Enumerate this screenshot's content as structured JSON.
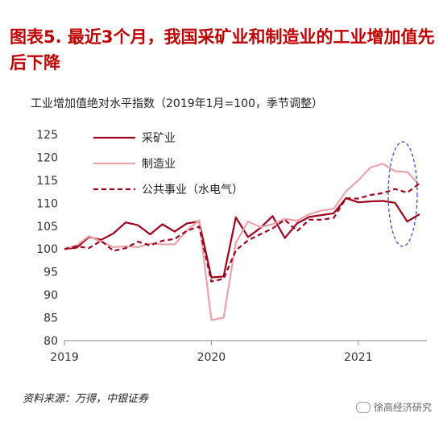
{
  "figure": {
    "title": "图表5.  最近3个月，我国采矿业和制造业的工业增加值先后下降",
    "source": "资料来源：万得，中银证券",
    "watermark": "徐高经济研究"
  },
  "chart_data": {
    "type": "line",
    "ylabel": "工业增加值绝对水平指数（2019年1月=100，季节调整）",
    "ylim": [
      80,
      125
    ],
    "yticks": [
      80,
      85,
      90,
      95,
      100,
      105,
      110,
      115,
      120,
      125
    ],
    "x_ticks": [
      "2019",
      "2020",
      "2021"
    ],
    "x_months": [
      "2019-01",
      "2019-02",
      "2019-03",
      "2019-04",
      "2019-05",
      "2019-06",
      "2019-07",
      "2019-08",
      "2019-09",
      "2019-10",
      "2019-11",
      "2019-12",
      "2020-01",
      "2020-02",
      "2020-03",
      "2020-04",
      "2020-05",
      "2020-06",
      "2020-07",
      "2020-08",
      "2020-09",
      "2020-10",
      "2020-11",
      "2020-12",
      "2021-01",
      "2021-02",
      "2021-03",
      "2021-04",
      "2021-05",
      "2021-06"
    ],
    "grid": false,
    "legend_position": "top-left",
    "highlight": "blue dashed ellipse around the last three months",
    "series": [
      {
        "name": "采矿业",
        "color": "#a0001e",
        "style": "solid",
        "values": [
          100.0,
          100.3,
          102.6,
          102.0,
          103.4,
          105.8,
          105.2,
          103.2,
          105.4,
          103.8,
          105.6,
          106.0,
          93.8,
          94.0,
          106.9,
          102.6,
          104.6,
          107.2,
          102.4,
          105.6,
          107.0,
          107.4,
          107.8,
          111.1,
          110.2,
          110.4,
          110.5,
          110.1,
          106.0,
          107.6
        ]
      },
      {
        "name": "制造业",
        "color": "#eba3aa",
        "style": "solid",
        "values": [
          100.0,
          100.8,
          102.8,
          101.6,
          100.4,
          100.6,
          100.4,
          101.2,
          101.0,
          101.0,
          104.0,
          106.3,
          84.5,
          85.0,
          101.4,
          106.0,
          104.8,
          105.4,
          106.6,
          106.2,
          107.6,
          108.4,
          108.8,
          112.6,
          115.0,
          117.8,
          118.6,
          117.0,
          116.8,
          114.0
        ]
      },
      {
        "name": "公共事业（水电气）",
        "color": "#a0001e",
        "style": "dashed",
        "values": [
          100.0,
          100.6,
          100.2,
          101.8,
          99.6,
          100.2,
          101.6,
          100.8,
          101.8,
          102.2,
          104.0,
          104.9,
          92.9,
          93.5,
          99.7,
          101.9,
          103.2,
          104.5,
          106.4,
          103.9,
          106.4,
          106.4,
          106.8,
          111.1,
          111.0,
          111.8,
          112.2,
          113.1,
          112.3,
          114.3
        ]
      }
    ]
  }
}
